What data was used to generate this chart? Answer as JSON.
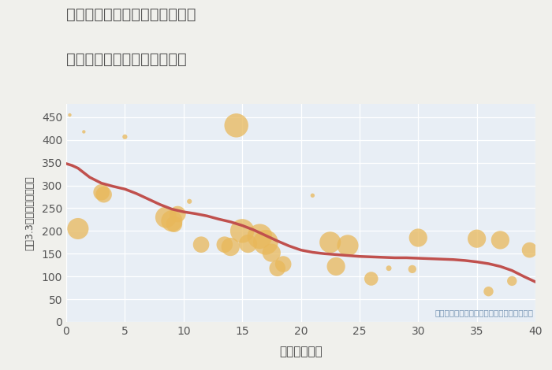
{
  "title_line1": "神奈川県横浜市中区根岸加曽台",
  "title_line2": "築年数別中古マンション価格",
  "xlabel": "築年数（年）",
  "ylabel": "坪（3.3㎡）単価（万円）",
  "annotation": "円の大きさは、取引のあった物件面積を示す",
  "fig_bg_color": "#f0f0ec",
  "plot_bg_color": "#e8eef5",
  "scatter_color": "#e8b85a",
  "scatter_alpha": 0.75,
  "line_color": "#c0504d",
  "line_width": 2.5,
  "grid_color": "#ffffff",
  "xlim": [
    0,
    40
  ],
  "ylim": [
    0,
    480
  ],
  "xticks": [
    0,
    5,
    10,
    15,
    20,
    25,
    30,
    35,
    40
  ],
  "yticks": [
    0,
    50,
    100,
    150,
    200,
    250,
    300,
    350,
    400,
    450
  ],
  "scatter_x": [
    0.3,
    1.0,
    1.5,
    3.0,
    3.2,
    5.0,
    8.5,
    9.0,
    9.2,
    9.5,
    10.5,
    11.5,
    13.5,
    14.0,
    14.5,
    15.0,
    15.5,
    16.5,
    17.0,
    17.5,
    18.0,
    18.5,
    21.0,
    22.5,
    23.0,
    24.0,
    26.0,
    27.5,
    29.5,
    30.0,
    35.0,
    36.0,
    37.0,
    38.0,
    39.5
  ],
  "scatter_y": [
    455,
    205,
    418,
    285,
    280,
    407,
    230,
    222,
    215,
    237,
    265,
    170,
    170,
    165,
    432,
    200,
    172,
    188,
    175,
    152,
    118,
    127,
    278,
    175,
    122,
    168,
    95,
    118,
    116,
    185,
    183,
    67,
    180,
    90,
    158
  ],
  "scatter_size": [
    10,
    380,
    10,
    220,
    220,
    20,
    380,
    380,
    220,
    220,
    20,
    220,
    220,
    280,
    480,
    480,
    280,
    520,
    520,
    280,
    220,
    220,
    15,
    380,
    280,
    380,
    160,
    25,
    55,
    280,
    280,
    80,
    280,
    80,
    200
  ],
  "trend_x": [
    0,
    0.5,
    1,
    1.5,
    2,
    3,
    4,
    5,
    6,
    7,
    8,
    9,
    10,
    11,
    12,
    13,
    14,
    15,
    16,
    17,
    18,
    19,
    20,
    21,
    22,
    23,
    24,
    25,
    26,
    27,
    28,
    29,
    30,
    31,
    32,
    33,
    34,
    35,
    36,
    37,
    38,
    39,
    40
  ],
  "trend_y": [
    348,
    344,
    338,
    328,
    318,
    305,
    298,
    292,
    282,
    270,
    258,
    248,
    242,
    238,
    233,
    226,
    220,
    212,
    202,
    190,
    178,
    167,
    158,
    153,
    150,
    148,
    146,
    144,
    143,
    142,
    141,
    141,
    140,
    139,
    138,
    137,
    135,
    132,
    128,
    122,
    113,
    100,
    88
  ]
}
